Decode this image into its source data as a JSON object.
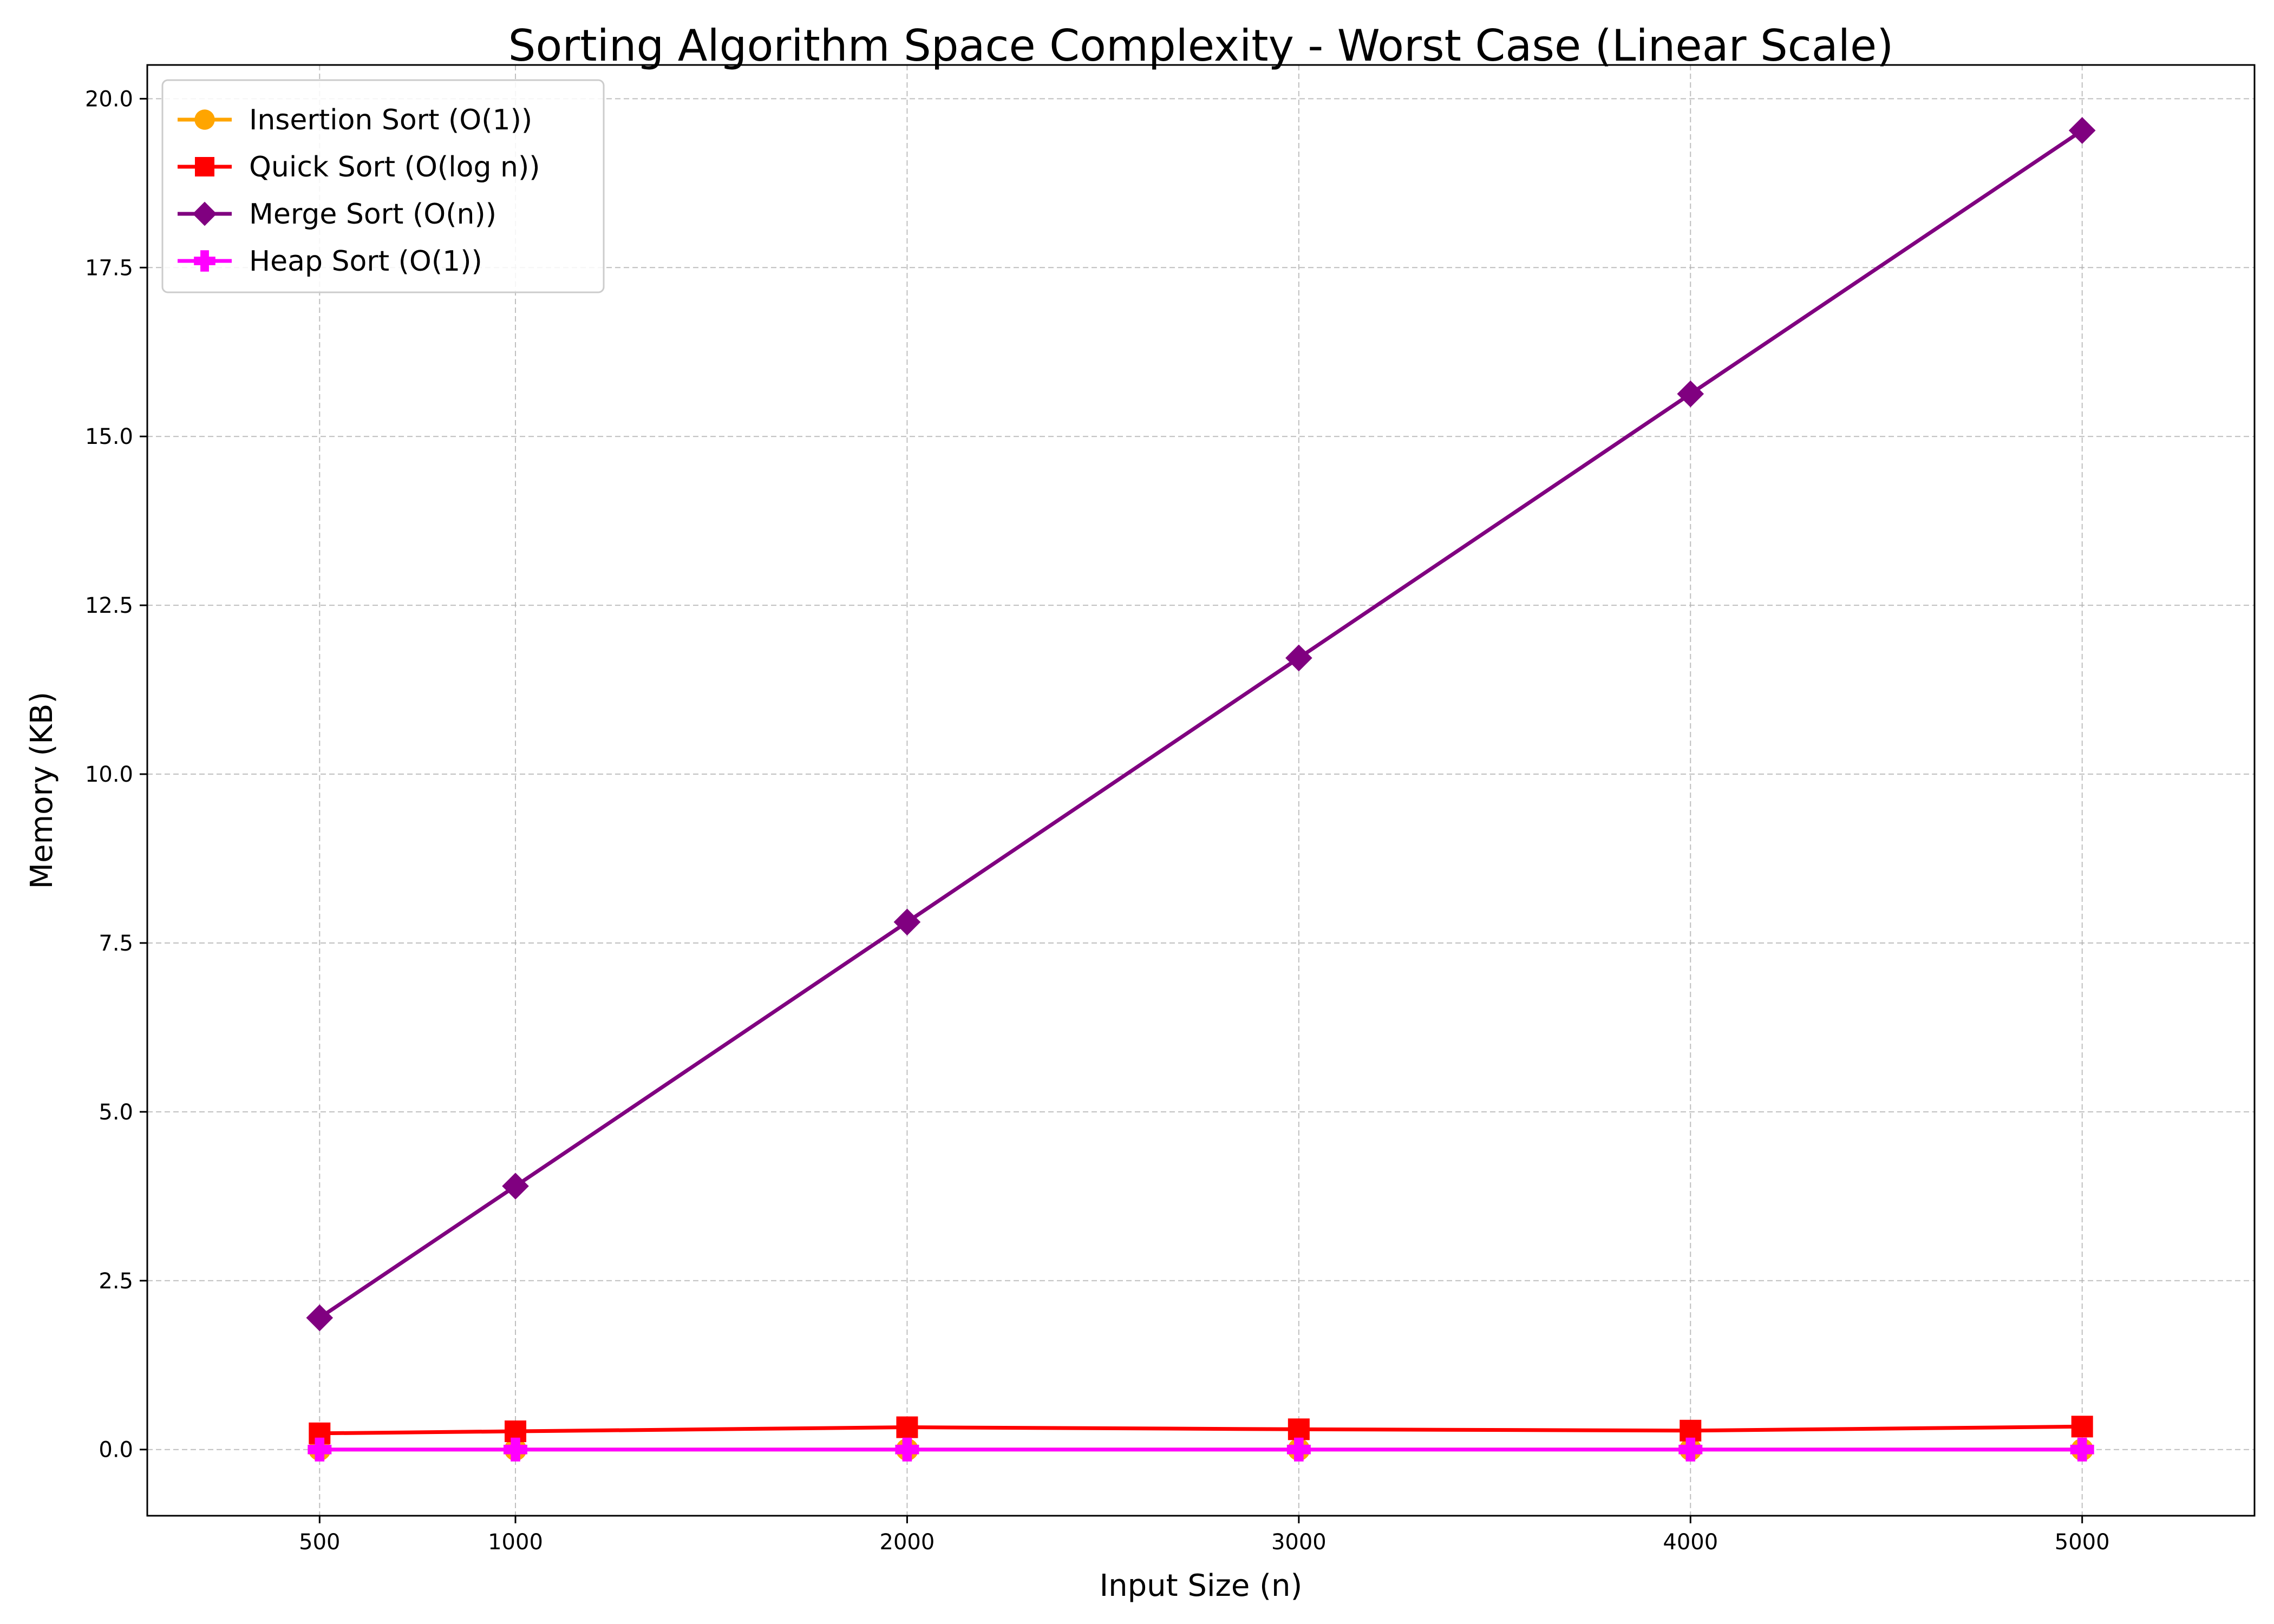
{
  "chart_data": {
    "type": "line",
    "title": "Sorting Algorithm Space Complexity - Worst Case (Linear Scale)",
    "xlabel": "Input Size (n)",
    "ylabel": "Memory (KB)",
    "x": [
      500,
      1000,
      2000,
      3000,
      4000,
      5000
    ],
    "xticks": [
      500,
      1000,
      2000,
      3000,
      4000,
      5000
    ],
    "xlim": [
      60,
      5440
    ],
    "yticks": [
      "0.0",
      "2.5",
      "5.0",
      "7.5",
      "10.0",
      "12.5",
      "15.0",
      "17.5",
      "20.0"
    ],
    "ylim": [
      -0.98,
      20.5
    ],
    "grid": true,
    "legend_position": "top-left",
    "series": [
      {
        "name": "Insertion Sort (O(1))",
        "color": "#ffa500",
        "marker": "circle",
        "values": [
          0.0,
          0.0,
          0.0,
          0.0,
          0.0,
          0.0
        ]
      },
      {
        "name": "Quick Sort (O(log n))",
        "color": "#ff0000",
        "marker": "square",
        "values": [
          0.24,
          0.27,
          0.33,
          0.3,
          0.28,
          0.34
        ]
      },
      {
        "name": "Merge Sort (O(n))",
        "color": "#800080",
        "marker": "diamond",
        "values": [
          1.95,
          3.9,
          7.81,
          11.72,
          15.63,
          19.53
        ]
      },
      {
        "name": "Heap Sort (O(1))",
        "color": "#ff00ff",
        "marker": "plus",
        "values": [
          0.0,
          0.0,
          0.0,
          0.0,
          0.0,
          0.0
        ]
      }
    ]
  }
}
